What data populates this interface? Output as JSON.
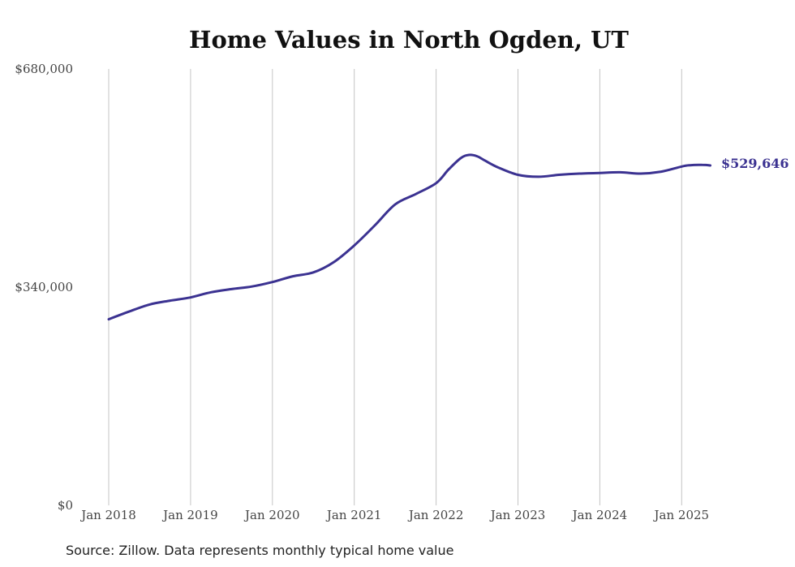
{
  "chart_data": {
    "type": "line",
    "title": "Home Values in North Ogden, UT",
    "xlabel": "",
    "ylabel": "",
    "ylim": [
      0,
      680000
    ],
    "ytick_labels": [
      "$0",
      "$340,000",
      "$680,000"
    ],
    "ytick_values": [
      0,
      340000,
      680000
    ],
    "xtick_labels": [
      "Jan 2018",
      "Jan 2019",
      "Jan 2020",
      "Jan 2021",
      "Jan 2022",
      "Jan 2023",
      "Jan 2024",
      "Jan 2025"
    ],
    "xtick_values": [
      2018,
      2019,
      2020,
      2021,
      2022,
      2023,
      2024,
      2025
    ],
    "grid": "vertical",
    "line_color": "#3b3291",
    "end_label": "$529,646",
    "source": "Source: Zillow. Data represents monthly typical home value",
    "series": [
      {
        "x": [
          2018.0,
          2018.25,
          2018.5,
          2018.75,
          2019.0,
          2019.25,
          2019.5,
          2019.75,
          2020.0,
          2020.25,
          2020.5,
          2020.75,
          2021.0,
          2021.25,
          2021.5,
          2021.75,
          2022.0,
          2022.15,
          2022.3,
          2022.4,
          2022.5,
          2022.6,
          2022.75,
          2023.0,
          2023.25,
          2023.5,
          2023.75,
          2024.0,
          2024.25,
          2024.5,
          2024.75,
          2025.0,
          2025.1,
          2025.25,
          2025.35
        ],
        "y": [
          290000,
          302000,
          313000,
          319000,
          324000,
          332000,
          337000,
          341000,
          348000,
          357000,
          363000,
          379000,
          405000,
          436000,
          469000,
          485000,
          502000,
          523000,
          541000,
          546000,
          544000,
          537000,
          527000,
          515000,
          512000,
          515000,
          517000,
          518000,
          519000,
          517000,
          520000,
          528000,
          530000,
          530500,
          529646
        ]
      }
    ]
  }
}
